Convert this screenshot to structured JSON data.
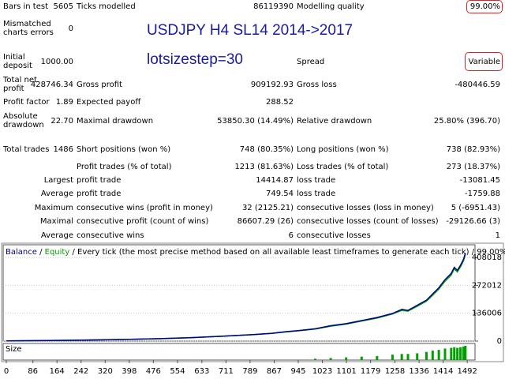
{
  "report": {
    "title": "USDJPY H4 SL14 2014->2017",
    "subtitle": "lotsizestep=30",
    "rows": [
      {
        "label1": "Bars in test",
        "value1": "5605",
        "label2": "Ticks modelled",
        "value2": "86119390",
        "label3": "Modelling quality",
        "value3": "99.00%"
      },
      {
        "label1": "Mismatched charts errors",
        "value1": "0"
      },
      {
        "label1": "Initial deposit",
        "value1": "1000.00",
        "label3": "Spread",
        "value3": "Variable"
      },
      {
        "label1": "Total net profit",
        "value1": "428746.34",
        "label2": "Gross profit",
        "value2": "909192.93",
        "label3": "Gross loss",
        "value3": "-480446.59"
      },
      {
        "label1": "Profit factor",
        "value1": "1.89",
        "label2": "Expected payoff",
        "value2": "288.52"
      },
      {
        "label1": "Absolute drawdown",
        "value1": "22.70",
        "label2": "Maximal drawdown",
        "value2": "53850.30 (14.49%)",
        "label3": "Relative drawdown",
        "value3": "25.80% (396.70)"
      },
      {
        "label1": "Total trades",
        "value1": "1486",
        "label2": "Short positions (won %)",
        "value2": "748 (80.35%)",
        "label3": "Long positions (won %)",
        "value3": "738 (82.93%)"
      },
      {
        "label2": "Profit trades (% of total)",
        "value2": "1213 (81.63%)",
        "label3": "Loss trades (% of total)",
        "value3": "273 (18.37%)"
      },
      {
        "prefix": "Largest",
        "label2": "profit trade",
        "value2": "14414.87",
        "label3": "loss trade",
        "value3": "-13081.45"
      },
      {
        "prefix": "Average",
        "label2": "profit trade",
        "value2": "749.54",
        "label3": "loss trade",
        "value3": "-1759.88"
      },
      {
        "prefix": "Maximum",
        "label2": "consecutive wins (profit in money)",
        "value2": "32 (2125.21)",
        "label3": "consecutive losses (loss in money)",
        "value3": "5 (-6951.43)"
      },
      {
        "prefix": "Maximal",
        "label2": "consecutive profit (count of wins)",
        "value2": "86607.29 (26)",
        "label3": "consecutive losses (count of losses)",
        "value3": "-29126.66 (3)"
      },
      {
        "prefix": "Average",
        "label2": "consecutive wins",
        "value2": "6",
        "label3": "consecutive losses",
        "value3": "1"
      }
    ]
  },
  "chart_data": {
    "type": "line",
    "description": "Every tick (the most precise method based on all available least timeframes to generate each tick)",
    "separator": "/",
    "quality": "99.00%",
    "x": [
      0,
      100,
      200,
      300,
      400,
      500,
      600,
      700,
      800,
      860,
      900,
      950,
      1000,
      1050,
      1100,
      1150,
      1200,
      1250,
      1280,
      1300,
      1330,
      1360,
      1380,
      1400,
      1420,
      1440,
      1450,
      1460,
      1470,
      1480,
      1486
    ],
    "series": [
      {
        "name": "Equity",
        "color": "#00a000",
        "values": [
          1000,
          2400,
          3900,
          5900,
          8800,
          11800,
          16800,
          23500,
          31500,
          37500,
          44000,
          51000,
          59000,
          73000,
          83000,
          98000,
          112000,
          132000,
          150000,
          146000,
          170000,
          195000,
          224000,
          254000,
          292000,
          322000,
          352000,
          338000,
          362000,
          392000,
          425000
        ]
      },
      {
        "name": "Balance",
        "color": "#00008b",
        "values": [
          1000,
          2500,
          4000,
          6000,
          9000,
          12000,
          17000,
          24000,
          32000,
          38000,
          45000,
          52000,
          60000,
          75000,
          85000,
          100000,
          115000,
          135000,
          155000,
          150000,
          175000,
          200000,
          230000,
          260000,
          300000,
          330000,
          360000,
          345000,
          370000,
          400000,
          429746
        ]
      }
    ],
    "xlim": [
      0,
      1512
    ],
    "ylim": [
      0,
      470000
    ],
    "xticks": [
      0,
      86,
      164,
      242,
      320,
      398,
      476,
      554,
      633,
      711,
      789,
      867,
      945,
      1023,
      1101,
      1179,
      1258,
      1336,
      1414,
      1492
    ],
    "yticks": [
      0,
      136006,
      272012,
      408018
    ],
    "grid": true,
    "size": {
      "name": "Size",
      "color": "#00a000",
      "x": [
        1000,
        1050,
        1100,
        1150,
        1200,
        1250,
        1280,
        1300,
        1330,
        1360,
        1380,
        1400,
        1420,
        1440,
        1450,
        1460,
        1470,
        1480,
        1486
      ],
      "values": [
        2,
        3,
        4,
        5,
        6,
        8,
        9,
        9,
        10,
        12,
        14,
        15,
        17,
        18,
        19,
        18,
        19,
        20,
        21
      ]
    }
  }
}
